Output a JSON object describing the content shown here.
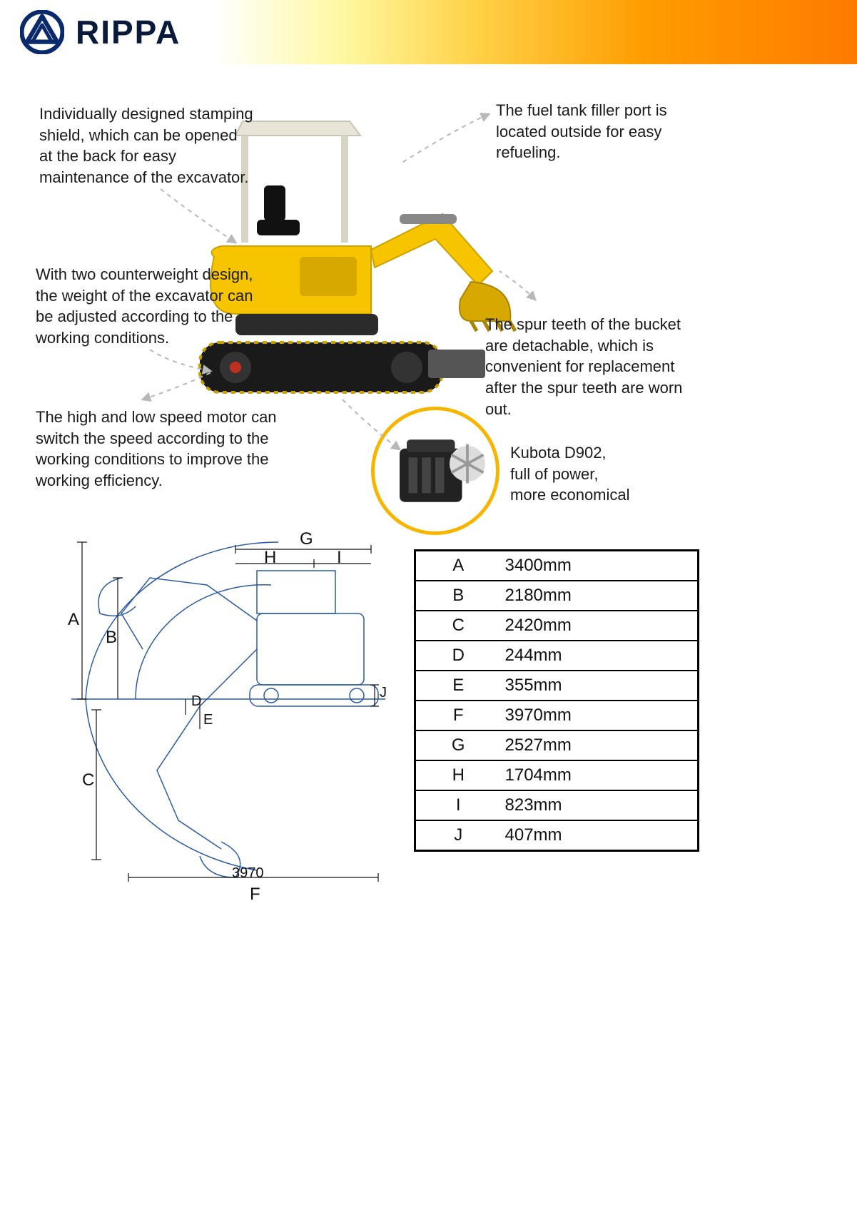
{
  "brand": "RIPPA",
  "header": {
    "logo_stroke": "#0a2a6b",
    "gradient_stops": [
      "#ffffff",
      "#fff8a0",
      "#ffd24a",
      "#ff9d00",
      "#ff7a00"
    ]
  },
  "callouts": {
    "shield": "Individually designed stamping shield, which can be opened at the back for easy maintenance of the excavator.",
    "counterweight": "With two counterweight design, the weight of the excavator can be adjusted according to the working conditions.",
    "motor": "The high and low speed motor can switch the speed according to the working conditions to improve the working efficiency.",
    "fuel": "The fuel tank filler port is located outside for easy refueling.",
    "teeth": "The spur teeth of the bucket are detachable, which is convenient for replacement after the spur teeth are worn out.",
    "engine": "Kubota D902,\nfull of power,\nmore economical"
  },
  "diagram": {
    "letters": [
      "A",
      "B",
      "C",
      "D",
      "E",
      "F",
      "G",
      "H",
      "I",
      "J"
    ],
    "bottom_value": "3970",
    "line_color": "#2a5aa8",
    "line_width": 1.5
  },
  "spec_table": {
    "rows": [
      {
        "k": "A",
        "v": "3400mm"
      },
      {
        "k": "B",
        "v": "2180mm"
      },
      {
        "k": "C",
        "v": "2420mm"
      },
      {
        "k": "D",
        "v": "244mm"
      },
      {
        "k": "E",
        "v": "355mm"
      },
      {
        "k": "F",
        "v": "3970mm"
      },
      {
        "k": "G",
        "v": "2527mm"
      },
      {
        "k": "H",
        "v": "1704mm"
      },
      {
        "k": "I",
        "v": "823mm"
      },
      {
        "k": "J",
        "v": "407mm"
      }
    ],
    "border_color": "#000000",
    "font_size": 24
  },
  "colors": {
    "machine_body": "#f7c400",
    "machine_dark": "#2b2b2b",
    "track": "#1a1a1a",
    "canopy": "#e8e4d8",
    "leader": "#b8b8b8",
    "engine_ring": "#f7b500"
  }
}
